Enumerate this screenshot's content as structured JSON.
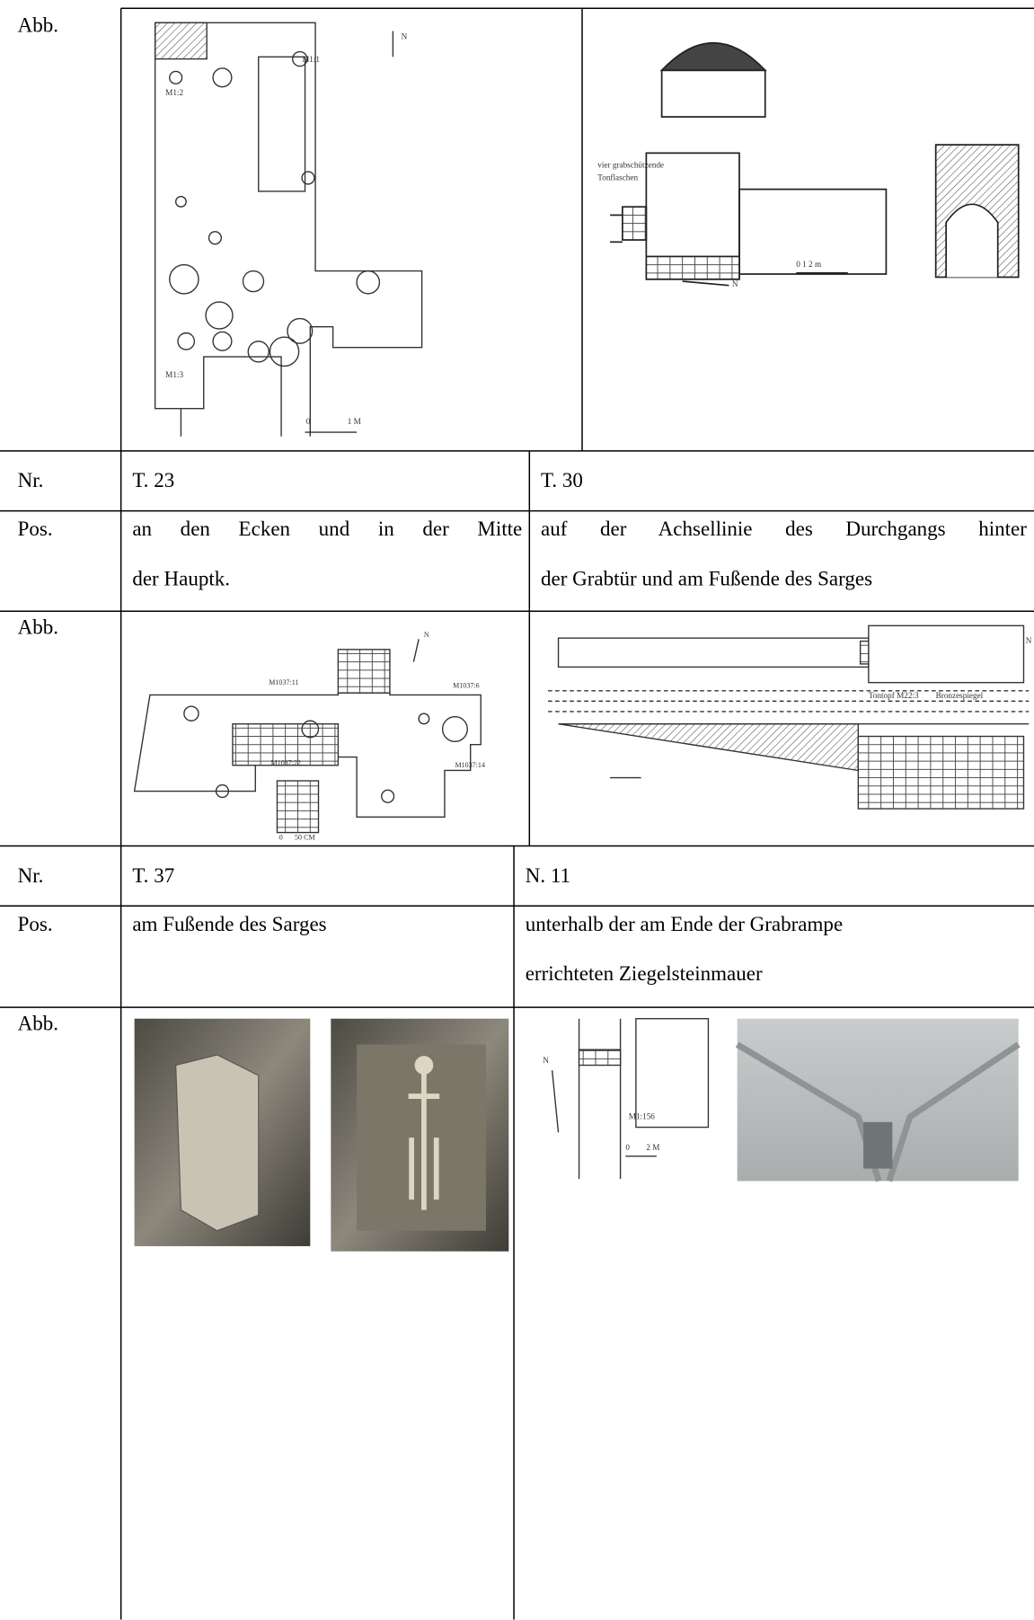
{
  "table": {
    "rows": [
      {
        "label": "Abb."
      },
      {
        "label": "Nr.",
        "cells": [
          "T. 23",
          "T. 30"
        ]
      },
      {
        "label": "Pos.",
        "cells": [
          [
            "an den Ecken und in der Mitte",
            "der Hauptk."
          ],
          [
            "auf der Achsellinie des Durchgangs hinter",
            "der Grabtür und am Fußende des Sarges"
          ]
        ]
      },
      {
        "label": "Abb."
      },
      {
        "label": "Nr.",
        "cells": [
          "T. 37",
          "N. 11"
        ]
      },
      {
        "label": "Pos.",
        "cells": [
          [
            "am Fußende des Sarges"
          ],
          [
            "unterhalb der am Ende der Grabrampe",
            "errichteten Ziegelsteinmauer"
          ]
        ]
      },
      {
        "label": "Abb."
      }
    ]
  },
  "figures": {
    "fig1": {
      "labels": [
        "M1:1",
        "M1:2",
        "M1:3",
        "N",
        "0",
        "1 M"
      ]
    },
    "fig2": {
      "labels": [
        "vier grabschützende",
        "Tonflaschen",
        "N",
        "0   1   2 m"
      ]
    },
    "fig3": {
      "labels": [
        "N",
        "M1037:11",
        "M1037:6",
        "M1037:22",
        "M1037:14",
        "0",
        "50 CM"
      ]
    },
    "fig4": {
      "labels": [
        "Tontopf M22:3",
        "Bronzespiegel",
        "N"
      ]
    },
    "fig6": {
      "labels": [
        "N",
        "M1:156",
        "0",
        "2 M"
      ]
    }
  }
}
